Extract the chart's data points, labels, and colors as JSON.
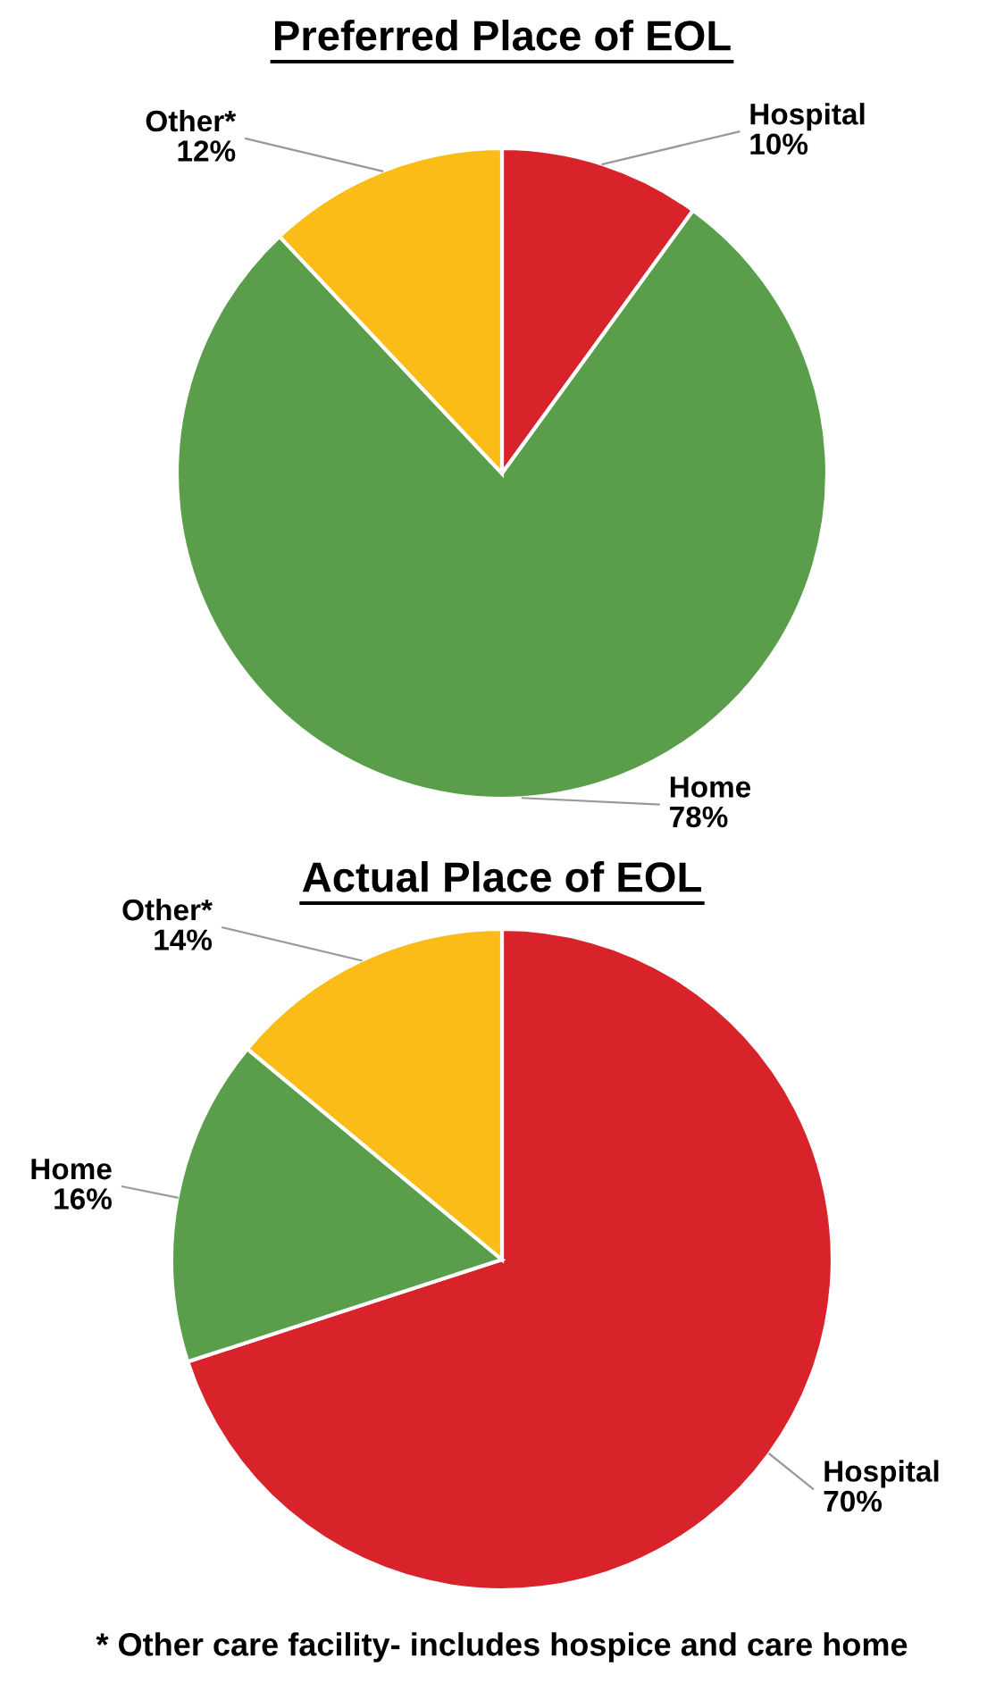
{
  "chart_data": [
    {
      "type": "pie",
      "title": "Preferred Place of EOL",
      "categories": [
        "Hospital",
        "Home",
        "Other*"
      ],
      "values": [
        10,
        78,
        12
      ],
      "colors": [
        "#d9232a",
        "#5a9e4b",
        "#fbbc18"
      ],
      "value_labels": [
        "10%",
        "78%",
        "12%"
      ]
    },
    {
      "type": "pie",
      "title": "Actual Place of EOL",
      "categories": [
        "Hospital",
        "Home",
        "Other*"
      ],
      "values": [
        70,
        16,
        14
      ],
      "colors": [
        "#d9232a",
        "#5a9e4b",
        "#fbbc18"
      ],
      "value_labels": [
        "70%",
        "16%",
        "14%"
      ],
      "annotations": [
        "* Other care facility- includes hospice and care home"
      ]
    }
  ]
}
